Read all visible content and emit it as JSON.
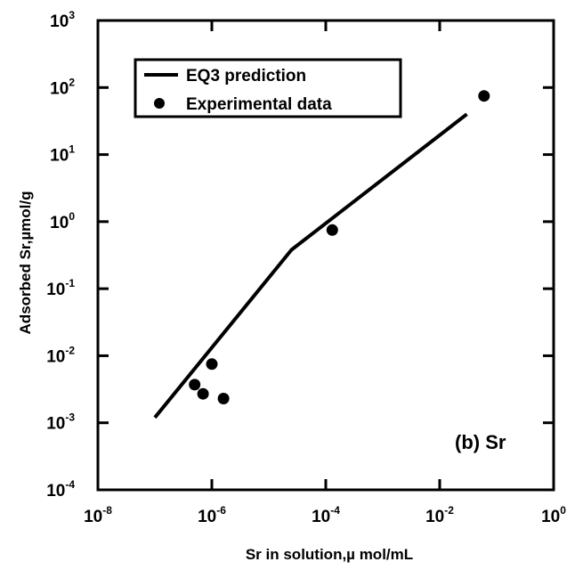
{
  "chart_data": {
    "type": "scatter",
    "xscale": "log",
    "yscale": "log",
    "xlim": [
      1e-08,
      1
    ],
    "ylim": [
      0.0001,
      1000
    ],
    "xlabel": "Sr in solution,µ mol/mL",
    "ylabel": "Adsorbed Sr,µmol/g",
    "annotation": "(b) Sr",
    "legend_position": "top-left",
    "x_ticks": [
      {
        "base": "10",
        "exp": "-8"
      },
      {
        "base": "10",
        "exp": "-6"
      },
      {
        "base": "10",
        "exp": "-4"
      },
      {
        "base": "10",
        "exp": "-2"
      },
      {
        "base": "10",
        "exp": "0"
      }
    ],
    "y_ticks": [
      {
        "base": "10",
        "exp": "-4"
      },
      {
        "base": "10",
        "exp": "-3"
      },
      {
        "base": "10",
        "exp": "-2"
      },
      {
        "base": "10",
        "exp": "-1"
      },
      {
        "base": "10",
        "exp": "0"
      },
      {
        "base": "10",
        "exp": "1"
      },
      {
        "base": "10",
        "exp": "2"
      },
      {
        "base": "10",
        "exp": "3"
      }
    ],
    "series": [
      {
        "name": "EQ3 prediction",
        "kind": "line",
        "points": [
          {
            "x": 1e-07,
            "y": 0.0012
          },
          {
            "x": 2.5e-05,
            "y": 0.38
          },
          {
            "x": 0.03,
            "y": 40
          }
        ]
      },
      {
        "name": "Experimental data",
        "kind": "scatter",
        "points": [
          {
            "x": 5e-07,
            "y": 0.0037
          },
          {
            "x": 7e-07,
            "y": 0.0027
          },
          {
            "x": 1e-06,
            "y": 0.0075
          },
          {
            "x": 1.6e-06,
            "y": 0.0023
          },
          {
            "x": 0.00013,
            "y": 0.75
          },
          {
            "x": 0.06,
            "y": 75
          }
        ]
      }
    ],
    "colors": {
      "ink": "#000000",
      "background": "#ffffff"
    }
  }
}
